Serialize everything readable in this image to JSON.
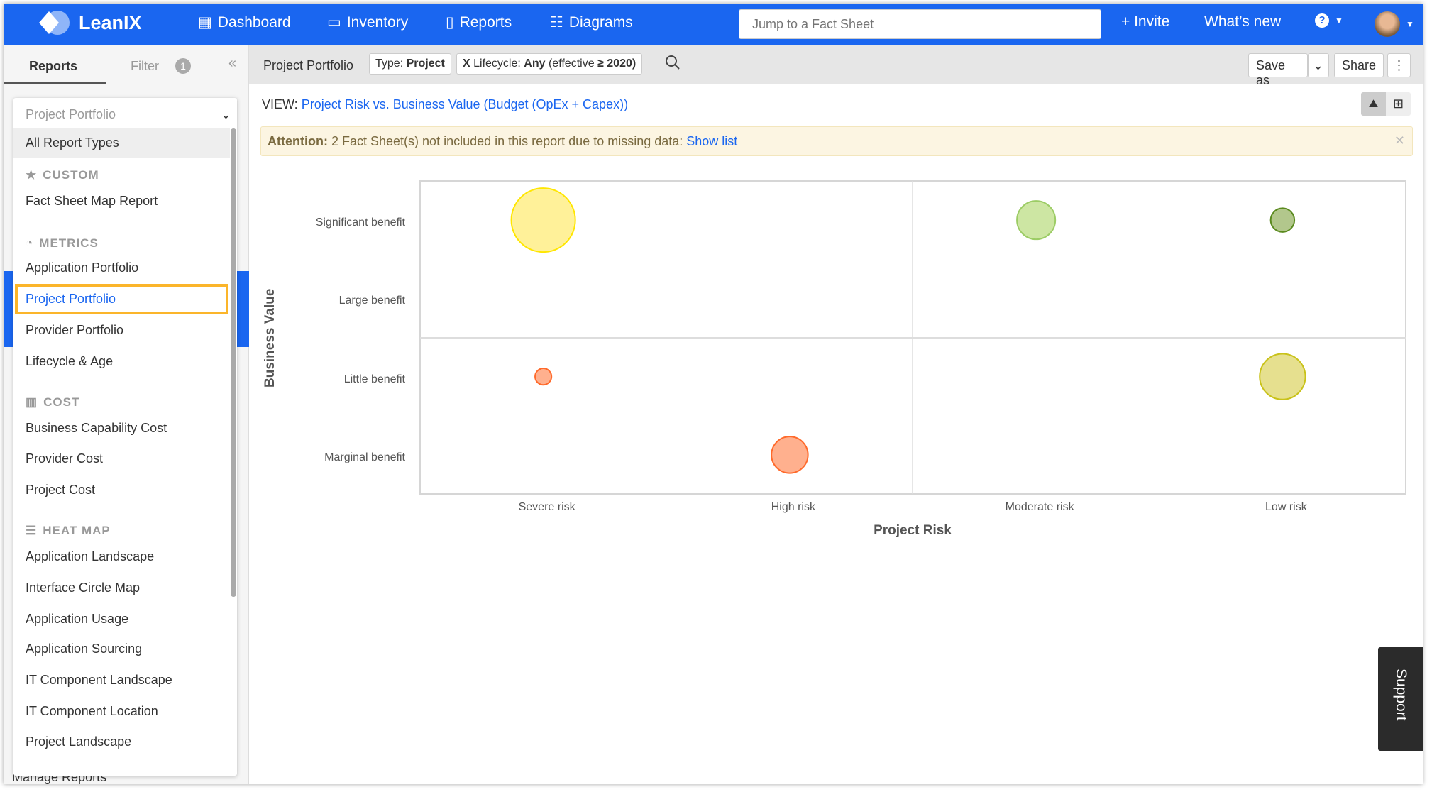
{
  "header": {
    "brand": "LeanIX",
    "nav": [
      "Dashboard",
      "Inventory",
      "Reports",
      "Diagrams"
    ],
    "search_placeholder": "Jump to a Fact Sheet",
    "invite": "+ Invite",
    "whats_new": "What’s new"
  },
  "left_panel": {
    "tabs": [
      "Reports",
      "Filter"
    ],
    "filter_count": "1",
    "collapse": "«",
    "manage": "Manage Reports"
  },
  "toolbar": {
    "title": "Project Portfolio",
    "chip_type_label": "Type:",
    "chip_type_value": "Project",
    "chip_lifecycle_x": "X",
    "chip_lifecycle_label": "Lifecycle:",
    "chip_lifecycle_value": "Any",
    "chip_lifecycle_extra": "(effective",
    "chip_lifecycle_year": "≥ 2020)",
    "save_as": "Save as",
    "share": "Share"
  },
  "dropdown": {
    "selected": "Project Portfolio",
    "all": "All Report Types",
    "sections": [
      {
        "title": "CUSTOM",
        "icon": "star-icon",
        "items": [
          "Fact Sheet Map Report"
        ]
      },
      {
        "title": "METRICS",
        "icon": "gauge-icon",
        "items": [
          "Application Portfolio",
          "Project Portfolio",
          "Provider Portfolio",
          "Lifecycle & Age"
        ]
      },
      {
        "title": "COST",
        "icon": "bar-chart-icon",
        "items": [
          "Business Capability Cost",
          "Provider Cost",
          "Project Cost"
        ]
      },
      {
        "title": "HEAT MAP",
        "icon": "list-icon",
        "items": [
          "Application Landscape",
          "Interface Circle Map",
          "Application Usage",
          "Application Sourcing",
          "IT Component Landscape",
          "IT Component Location",
          "Project Landscape"
        ]
      }
    ]
  },
  "view": {
    "label": "VIEW:",
    "value": "Project Risk vs. Business Value (Budget (OpEx + Capex))"
  },
  "attention": {
    "label": "Attention:",
    "text": "2 Fact Sheet(s) not included in this report due to missing data:",
    "link": "Show list"
  },
  "support": "Support",
  "chart_data": {
    "type": "scatter",
    "xlabel": "Project Risk",
    "ylabel": "Business Value",
    "x_categories": [
      "Severe risk",
      "High risk",
      "Moderate risk",
      "Low risk"
    ],
    "y_categories": [
      "Marginal benefit",
      "Little benefit",
      "Large benefit",
      "Significant benefit"
    ],
    "points": [
      {
        "x": "Severe risk",
        "y": "Significant benefit",
        "size": 35,
        "fill": "#fff199",
        "stroke": "#ffe600"
      },
      {
        "x": "Moderate risk",
        "y": "Significant benefit",
        "size": 21,
        "fill": "#cde6a3",
        "stroke": "#9ccc65"
      },
      {
        "x": "Low risk",
        "y": "Significant benefit",
        "size": 13,
        "fill": "#b2c78c",
        "stroke": "#5a8a1e"
      },
      {
        "x": "Severe risk",
        "y": "Little benefit",
        "size": 9,
        "fill": "#ffb08e",
        "stroke": "#ff6a2b"
      },
      {
        "x": "Low risk",
        "y": "Little benefit",
        "size": 25,
        "fill": "#e6e08f",
        "stroke": "#c9c21a"
      },
      {
        "x": "High risk",
        "y": "Marginal benefit",
        "size": 20,
        "fill": "#ffb08e",
        "stroke": "#ff6a2b"
      }
    ]
  }
}
